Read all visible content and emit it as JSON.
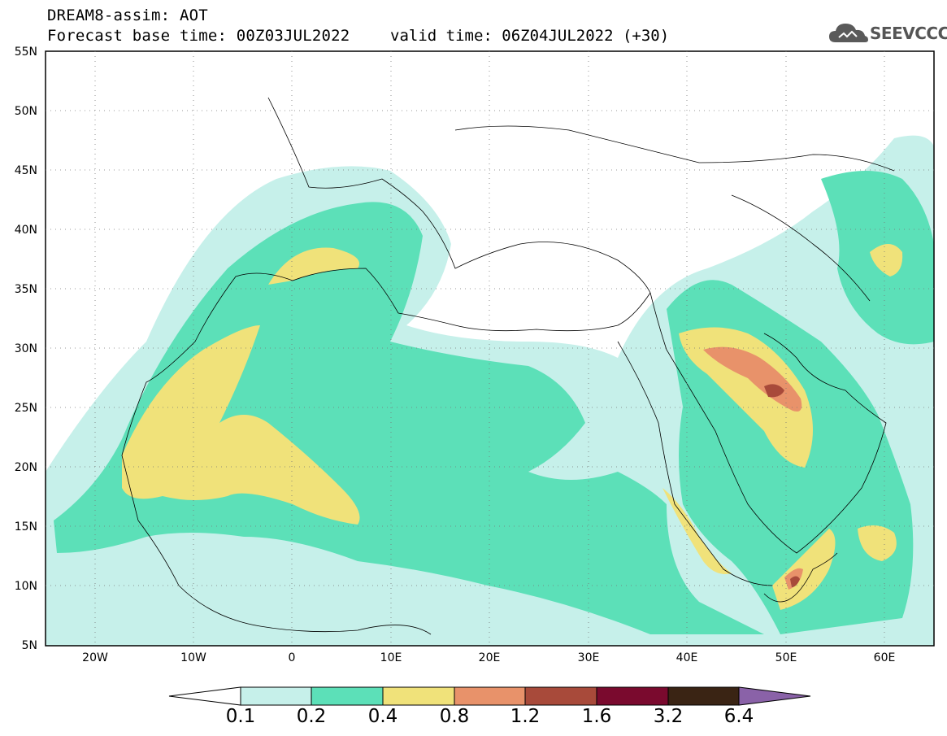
{
  "header": {
    "line1": "DREAM8-assim: AOT",
    "base_time_label": "Forecast base time: 00Z03JUL2022",
    "valid_time_label": "valid time: 06Z04JUL2022 (+30)"
  },
  "logo": {
    "text": "SEEVCCC",
    "icon": "cloud-icon"
  },
  "map": {
    "lon_range": [
      -25,
      65
    ],
    "lat_range": [
      5,
      55
    ],
    "lat_labels": [
      "55N",
      "50N",
      "45N",
      "40N",
      "35N",
      "30N",
      "25N",
      "20N",
      "15N",
      "10N",
      "5N"
    ],
    "lon_labels": [
      "20W",
      "10W",
      "0",
      "10E",
      "20E",
      "30E",
      "40E",
      "50E",
      "60E"
    ],
    "grid": "dotted"
  },
  "colorbar": {
    "levels": [
      "0.1",
      "0.2",
      "0.4",
      "0.8",
      "1.2",
      "1.6",
      "3.2",
      "6.4"
    ],
    "colors": [
      "#c6f0ea",
      "#5ce0b8",
      "#f0e27a",
      "#e8926a",
      "#a84a3a",
      "#7a0a2e",
      "#3a2414",
      "#8a62a8"
    ]
  }
}
